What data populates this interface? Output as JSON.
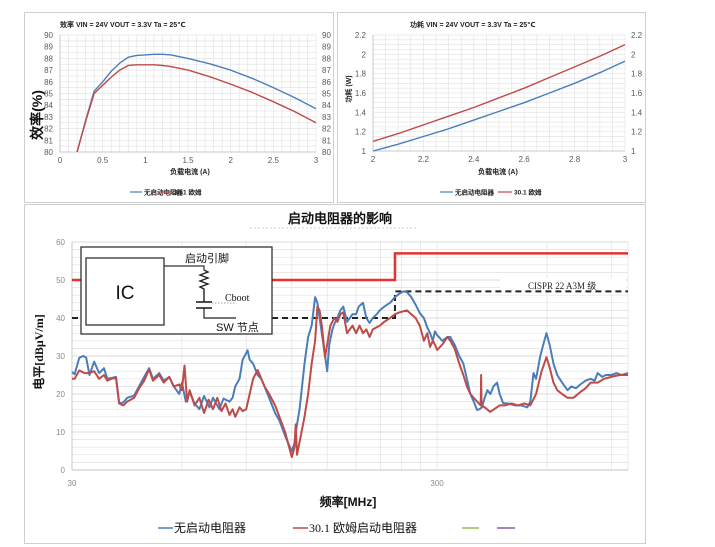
{
  "chart_data": [
    {
      "type": "line",
      "title": "效率 VIN = 24V VOUT = 3.3V Ta = 25℃",
      "xlabel": "负载电流 (A)",
      "ylabel": "效率(%)",
      "xlim": [
        0,
        3
      ],
      "ylim": [
        80,
        90
      ],
      "xticks": [
        0,
        0.5,
        1,
        1.5,
        2,
        2.5,
        3
      ],
      "xtick_labels": [
        "0",
        "0.5",
        "1",
        "1.5",
        "2",
        "2.5",
        "3"
      ],
      "yticks": [
        80,
        81,
        82,
        83,
        84,
        85,
        86,
        87,
        88,
        89,
        90
      ],
      "ytick_labels": [
        "80",
        "81",
        "82",
        "83",
        "84",
        "85",
        "86",
        "87",
        "88",
        "89",
        "90"
      ],
      "grid": true,
      "legend_position": "bottom",
      "series": [
        {
          "name": "无启动电阻器",
          "color": "#4a7ebb",
          "x": [
            0.2,
            0.3,
            0.4,
            0.5,
            0.6,
            0.7,
            0.8,
            0.9,
            1.0,
            1.1,
            1.2,
            1.3,
            1.5,
            1.75,
            2.0,
            2.25,
            2.5,
            2.75,
            3.0
          ],
          "y": [
            80,
            82.7,
            85.2,
            86.0,
            86.9,
            87.6,
            88.1,
            88.25,
            88.3,
            88.35,
            88.35,
            88.3,
            88.0,
            87.55,
            87.0,
            86.3,
            85.5,
            84.65,
            83.7
          ]
        },
        {
          "name": "30.1 欧姆",
          "color": "#be4b48",
          "x": [
            0.2,
            0.3,
            0.4,
            0.5,
            0.6,
            0.7,
            0.8,
            0.9,
            1.0,
            1.1,
            1.2,
            1.3,
            1.5,
            1.75,
            2.0,
            2.25,
            2.5,
            2.75,
            3.0
          ],
          "y": [
            80,
            82.6,
            85.0,
            85.7,
            86.4,
            87.0,
            87.4,
            87.45,
            87.45,
            87.45,
            87.4,
            87.3,
            87.0,
            86.45,
            85.8,
            85.1,
            84.3,
            83.45,
            82.5
          ]
        }
      ]
    },
    {
      "type": "line",
      "title": "功耗 VIN = 24V VOUT = 3.3V Ta = 25℃",
      "xlabel": "负载电流 (A)",
      "ylabel": "功耗 (W)",
      "xlim": [
        2,
        3
      ],
      "ylim": [
        1,
        2.2
      ],
      "xticks": [
        2,
        2.2,
        2.4,
        2.6,
        2.8,
        3
      ],
      "xtick_labels": [
        "2",
        "2.2",
        "2.4",
        "2.6",
        "2.8",
        "3"
      ],
      "yticks": [
        1,
        1.2,
        1.4,
        1.6,
        1.8,
        2,
        2.2
      ],
      "ytick_labels": [
        "1",
        "1.2",
        "1.4",
        "1.6",
        "1.8",
        "2",
        "2.2"
      ],
      "grid": true,
      "legend_position": "bottom",
      "series": [
        {
          "name": "无启动电阻器",
          "color": "#4a7ebb",
          "x": [
            2.0,
            2.1,
            2.2,
            2.3,
            2.4,
            2.5,
            2.6,
            2.7,
            2.8,
            2.9,
            3.0
          ],
          "y": [
            1.0,
            1.07,
            1.15,
            1.23,
            1.32,
            1.41,
            1.5,
            1.6,
            1.7,
            1.81,
            1.93
          ]
        },
        {
          "name": "30.1 欧姆",
          "color": "#be4b48",
          "x": [
            2.0,
            2.1,
            2.2,
            2.3,
            2.4,
            2.5,
            2.6,
            2.7,
            2.8,
            2.9,
            3.0
          ],
          "y": [
            1.1,
            1.18,
            1.27,
            1.36,
            1.45,
            1.55,
            1.65,
            1.76,
            1.87,
            1.98,
            2.1
          ]
        }
      ]
    },
    {
      "type": "line",
      "title": "启动电阻器的影响",
      "xlabel": "频率[MHz]",
      "ylabel": "电平[dBμV/m]",
      "xscale": "log",
      "xlim": [
        30,
        1000
      ],
      "ylim": [
        0,
        60
      ],
      "xticks": [
        30,
        300
      ],
      "xtick_labels": [
        "30",
        "300"
      ],
      "yticks": [
        0,
        10,
        20,
        30,
        40,
        50,
        60
      ],
      "ytick_labels": [
        "0",
        "10",
        "20",
        "30",
        "40",
        "50",
        "60"
      ],
      "grid": true,
      "legend_position": "bottom",
      "series": [
        {
          "name": "无启动电阻器",
          "color": "#4a7ebb",
          "x": [
            30,
            30.5,
            31.4,
            32.2,
            32.8,
            33.5,
            34.5,
            35.6,
            36.7,
            37.5,
            38.4,
            39.6,
            40.4,
            41.5,
            42.5,
            44.4,
            45.8,
            47.3,
            48,
            48.8,
            50,
            52,
            53.5,
            55.4,
            57,
            59,
            60,
            61.5,
            63,
            65,
            67,
            69,
            71.4,
            73,
            76,
            78,
            81,
            82.6,
            84,
            86.3,
            88,
            90.8,
            92,
            94,
            96.7,
            99,
            101,
            104,
            108,
            111,
            115,
            118,
            120,
            122,
            124,
            126,
            128,
            130,
            133,
            136,
            139,
            141,
            143,
            145,
            148,
            150,
            152,
            155,
            157,
            160,
            163,
            166,
            170,
            173,
            176,
            180,
            183,
            188,
            192,
            196,
            200,
            205,
            209,
            215,
            223,
            230,
            237,
            243,
            248,
            255,
            262,
            269,
            276,
            282,
            287,
            292,
            296,
            300,
            310,
            320,
            326,
            335,
            345,
            354,
            362,
            370,
            378,
            386,
            392,
            398,
            405,
            412,
            420,
            428,
            438,
            445,
            455,
            470,
            490,
            510,
            530,
            540,
            551,
            560,
            575,
            590,
            598,
            610,
            625,
            640,
            660,
            683,
            700,
            720,
            740,
            765,
            790,
            810,
            826,
            850,
            870,
            900,
            930,
            960,
            1000
          ],
          "y": [
            25.8,
            25.2,
            29.5,
            30,
            29.6,
            25,
            28.5,
            25.5,
            26.8,
            24,
            24.2,
            24.5,
            17.5,
            17.8,
            19,
            19.6,
            22,
            24.5,
            25.6,
            26.8,
            24,
            25.5,
            23.5,
            24.5,
            22,
            20,
            23,
            18,
            20.5,
            17.5,
            16,
            19.5,
            16.5,
            19,
            16,
            18.8,
            18,
            19,
            22,
            24,
            29,
            31.5,
            29,
            28,
            25,
            24,
            22,
            19,
            15,
            13,
            9,
            6.5,
            5,
            7,
            12,
            16,
            22,
            28,
            35,
            38,
            45.5,
            44,
            40,
            36,
            30,
            26,
            33,
            37,
            38.5,
            40,
            42,
            43,
            39,
            40,
            41,
            41,
            43,
            44,
            40,
            38.7,
            40,
            41,
            42,
            43,
            44,
            45.5,
            46.5,
            47,
            46.8,
            45.5,
            43.5,
            41.3,
            40,
            37.5,
            36,
            34,
            36.5,
            35.5,
            34,
            35,
            35,
            33,
            30,
            28,
            24,
            20,
            18,
            15.8,
            16,
            16.5,
            19,
            21,
            20,
            22,
            23,
            20,
            17.6,
            17.5,
            17,
            17,
            16.5,
            18,
            25.5,
            24,
            30,
            34,
            36,
            33,
            28,
            25,
            23,
            21,
            22,
            21.5,
            22.5,
            23.5,
            24,
            23.5,
            25.5,
            24.5,
            25,
            25,
            25.5,
            25,
            25.5
          ]
        },
        {
          "name": "30.1 欧姆启动电阻器",
          "color": "#be4b48",
          "x": [
            30,
            30.5,
            31.4,
            32.5,
            33.5,
            34.5,
            35.6,
            36.7,
            37.5,
            38.4,
            39.6,
            40.4,
            41.5,
            42.5,
            44.4,
            45.8,
            47.3,
            48.8,
            50,
            52,
            53.5,
            55.4,
            57,
            59,
            60,
            61,
            62,
            63,
            65,
            67,
            69,
            71,
            73,
            75,
            77,
            79,
            81,
            82.6,
            84,
            86.3,
            88,
            90,
            92,
            94,
            96.7,
            99,
            101,
            104,
            108,
            111,
            115,
            118,
            120,
            122,
            123,
            124,
            127,
            130,
            133,
            136,
            139,
            141,
            143,
            145,
            148,
            150,
            153,
            157,
            160,
            163,
            166,
            170,
            173,
            176,
            180,
            184,
            188,
            192,
            196,
            200,
            209,
            215,
            223,
            230,
            237,
            248,
            255,
            262,
            269,
            276,
            282,
            287,
            292,
            296,
            300,
            310,
            320,
            326,
            335,
            345,
            354,
            362,
            370,
            378,
            386,
            395,
            396,
            397,
            405,
            419,
            430,
            445,
            460,
            480,
            500,
            520,
            540,
            560,
            580,
            598,
            610,
            625,
            640,
            660,
            683,
            709,
            740,
            765,
            790,
            826,
            860,
            900,
            950,
            1000
          ],
          "y": [
            24,
            24,
            26.2,
            25.5,
            25.5,
            26,
            24,
            25,
            23.5,
            24,
            24.2,
            17.5,
            17,
            18,
            19,
            21.5,
            23.5,
            26.5,
            23.5,
            25,
            23,
            24.5,
            22,
            22.5,
            21,
            27.5,
            18,
            21,
            17,
            19,
            15,
            18.5,
            16,
            19,
            15.5,
            17.5,
            14.5,
            16,
            14,
            16.5,
            15.5,
            16,
            20,
            24,
            26.3,
            24,
            22,
            20,
            17,
            14,
            10,
            6,
            3.4,
            6,
            12,
            4,
            9,
            14,
            20,
            28,
            34,
            43,
            42,
            38,
            29.7,
            33,
            38,
            40,
            39,
            41,
            41.5,
            36,
            37,
            38,
            36,
            38,
            36,
            37,
            35,
            37,
            38,
            39,
            40,
            41,
            41.5,
            42,
            41,
            40,
            38,
            34,
            36,
            32.4,
            34,
            33,
            31.6,
            33,
            35,
            34,
            32,
            28,
            25,
            22,
            20,
            19,
            18,
            17,
            25,
            17,
            16.5,
            15.3,
            16,
            17,
            17,
            17.5,
            17,
            17.5,
            17,
            20,
            26,
            29.7,
            27,
            23,
            21,
            20,
            19,
            19,
            20.5,
            21.5,
            23,
            23,
            24,
            24.5,
            25,
            25
          ]
        },
        {
          "name": "",
          "color": "#8fbc5a",
          "x": [],
          "y": []
        },
        {
          "name": "",
          "color": "#7e62a3",
          "x": [],
          "y": []
        }
      ],
      "limit_lines": [
        {
          "color": "#e8312f",
          "style": "solid",
          "x": [
            30,
            230,
            230,
            1000
          ],
          "y": [
            50,
            50,
            57,
            57
          ]
        },
        {
          "color": "#222222",
          "style": "dashed",
          "x": [
            30,
            230,
            230,
            1000
          ],
          "y": [
            40,
            40,
            47,
            47
          ]
        }
      ],
      "annotations": [
        {
          "text": "CISPR 22 A3M 级",
          "x": 600,
          "y": 48
        }
      ]
    }
  ],
  "emi_inset": {
    "ic_label": "IC",
    "pin_label": "启动引脚",
    "cap_label": "Cboot",
    "node_label": "SW 节点"
  },
  "emi_annotation": "CISPR 22 A3M 级"
}
